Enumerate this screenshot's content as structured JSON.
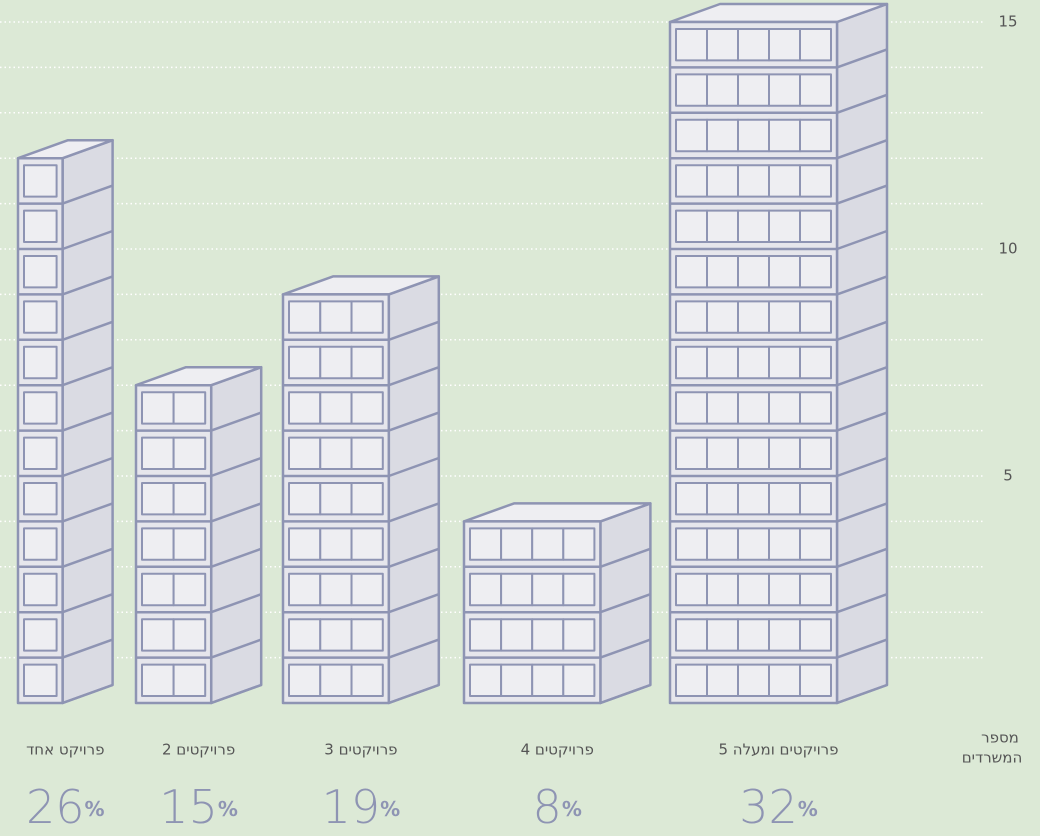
{
  "chart_data": {
    "type": "building",
    "y_label": [
      "מספר",
      "המשרדים"
    ],
    "categories": [
      "פרויקט אחד",
      "2 פרויקטים",
      "3 פרויקטים",
      "4 פרויקטים",
      "5 פרויקטים ומעלה"
    ],
    "values": [
      12,
      7,
      9,
      4,
      15
    ],
    "shares": [
      26,
      15,
      19,
      8,
      32
    ],
    "share_unit": "%",
    "ylim": [
      0,
      15
    ],
    "yticks": [
      5,
      10,
      15
    ],
    "ygrid": [
      1,
      2,
      3,
      4,
      5,
      6,
      7,
      8,
      9,
      10,
      11,
      12,
      13,
      14,
      15
    ],
    "color": "#e6e6ec",
    "side_color": "#dadbe3",
    "line_color": "#8e94b3"
  }
}
